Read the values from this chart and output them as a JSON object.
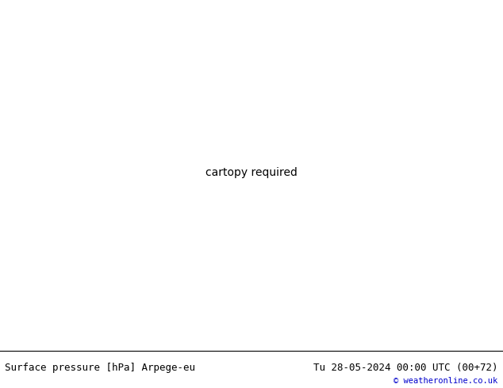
{
  "title_left": "Surface pressure [hPa] Arpege-eu",
  "title_right": "Tu 28-05-2024 00:00 UTC (00+72)",
  "credit": "© weatheronline.co.uk",
  "background_map_color": "#c8c8c8",
  "land_color_light": "#c8f0a0",
  "sea_color": "#c8c8c8",
  "border_color_main": "#606060",
  "border_color_thick": "#000000",
  "isobar_color_red": "#ff0000",
  "isobar_color_blue": "#0000cc",
  "isobar_color_black": "#000000",
  "bottom_bar_color": "#ffffff",
  "bottom_bar_height": 0.095,
  "title_fontsize": 9,
  "credit_fontsize": 7.5,
  "credit_color": "#0000cc",
  "fig_width": 6.34,
  "fig_height": 4.9,
  "dpi": 100
}
